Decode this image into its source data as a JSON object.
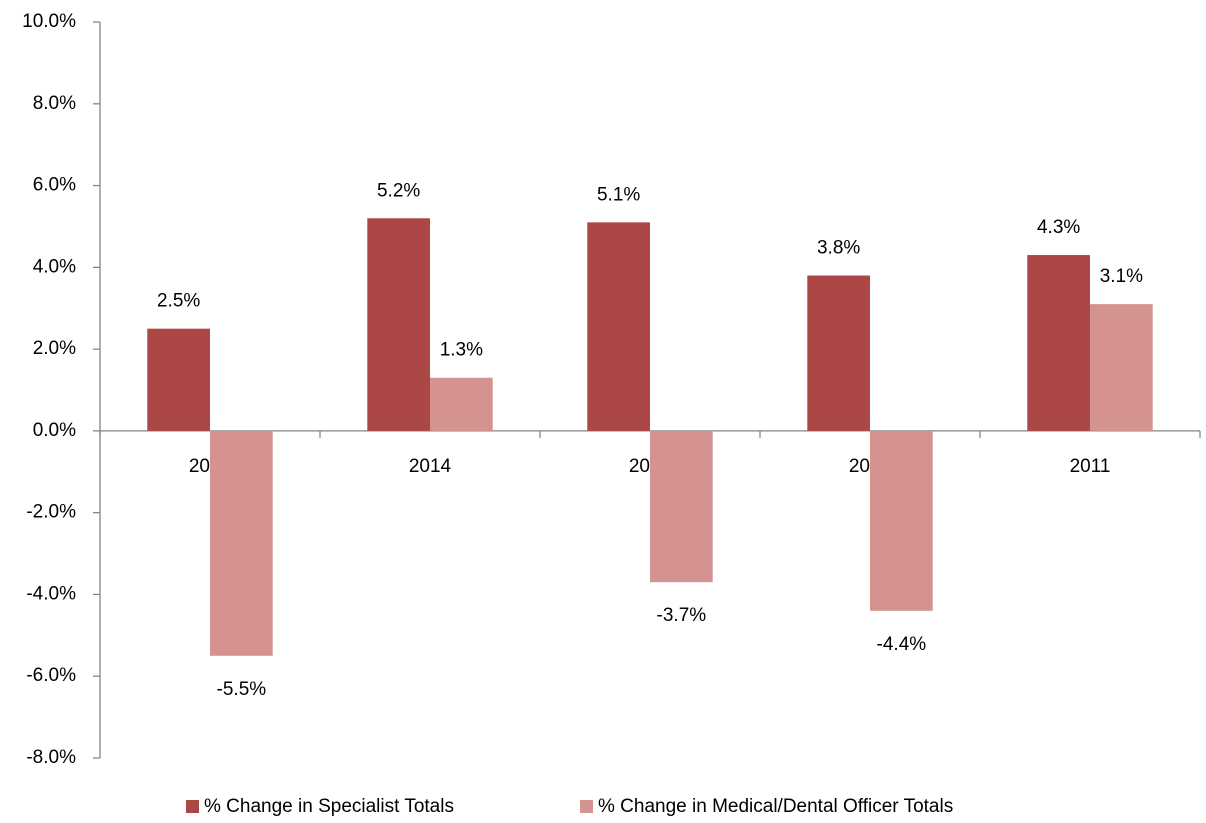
{
  "chart_data": {
    "type": "bar",
    "categories": [
      "2015",
      "2014",
      "2013",
      "2012",
      "2011"
    ],
    "series": [
      {
        "name": "% Change in Specialist Totals",
        "color": "#ab4744",
        "values": [
          2.5,
          5.2,
          5.1,
          3.8,
          4.3
        ],
        "value_labels": [
          "2.5%",
          "5.2%",
          "5.1%",
          "3.8%",
          "4.3%"
        ]
      },
      {
        "name": "% Change in Medical/Dental Officer Totals",
        "color": "#d49391",
        "values": [
          -5.5,
          1.3,
          -3.7,
          -4.4,
          3.1
        ],
        "value_labels": [
          "-5.5%",
          "1.3%",
          "-3.7%",
          "-4.4%",
          "3.1%"
        ]
      }
    ],
    "ylim": [
      -8,
      10
    ],
    "yticks": [
      {
        "value": -8,
        "label": "-8.0%"
      },
      {
        "value": -6,
        "label": "-6.0%"
      },
      {
        "value": -4,
        "label": "-4.0%"
      },
      {
        "value": -2,
        "label": "-2.0%"
      },
      {
        "value": 0,
        "label": "0.0%"
      },
      {
        "value": 2,
        "label": "2.0%"
      },
      {
        "value": 4,
        "label": "4.0%"
      },
      {
        "value": 6,
        "label": "6.0%"
      },
      {
        "value": 8,
        "label": "8.0%"
      },
      {
        "value": 10,
        "label": "10.0%"
      }
    ],
    "grid": false,
    "legend": "bottom"
  }
}
